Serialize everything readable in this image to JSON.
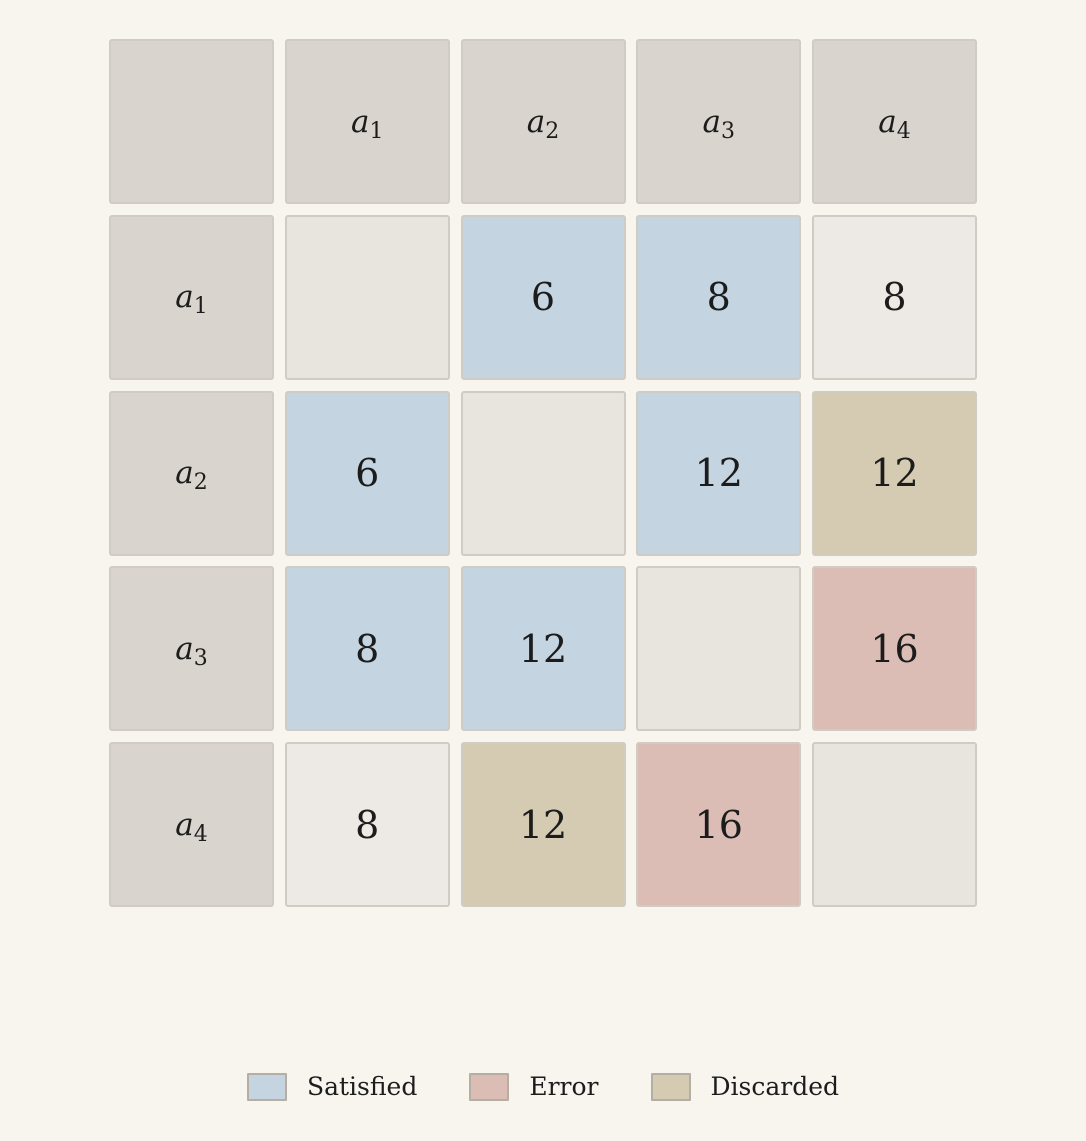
{
  "matrix": {
    "column_headers": [
      {
        "base": "a",
        "sub": "1"
      },
      {
        "base": "a",
        "sub": "2"
      },
      {
        "base": "a",
        "sub": "3"
      },
      {
        "base": "a",
        "sub": "4"
      }
    ],
    "rows": [
      {
        "header": {
          "base": "a",
          "sub": "1"
        },
        "cells": [
          {
            "value": "",
            "status": "diagonal"
          },
          {
            "value": "6",
            "status": "satisfied"
          },
          {
            "value": "8",
            "status": "satisfied"
          },
          {
            "value": "8",
            "status": "plain"
          }
        ]
      },
      {
        "header": {
          "base": "a",
          "sub": "2"
        },
        "cells": [
          {
            "value": "6",
            "status": "satisfied"
          },
          {
            "value": "",
            "status": "diagonal"
          },
          {
            "value": "12",
            "status": "satisfied"
          },
          {
            "value": "12",
            "status": "discarded"
          }
        ]
      },
      {
        "header": {
          "base": "a",
          "sub": "3"
        },
        "cells": [
          {
            "value": "8",
            "status": "satisfied"
          },
          {
            "value": "12",
            "status": "satisfied"
          },
          {
            "value": "",
            "status": "diagonal"
          },
          {
            "value": "16",
            "status": "error"
          }
        ]
      },
      {
        "header": {
          "base": "a",
          "sub": "4"
        },
        "cells": [
          {
            "value": "8",
            "status": "plain"
          },
          {
            "value": "12",
            "status": "discarded"
          },
          {
            "value": "16",
            "status": "error"
          },
          {
            "value": "",
            "status": "diagonal"
          }
        ]
      }
    ]
  },
  "legend": [
    {
      "label": "Satisfied",
      "status": "satisfied",
      "color": "#c4d4e0"
    },
    {
      "label": "Error",
      "status": "error",
      "color": "#dbbdb6"
    },
    {
      "label": "Discarded",
      "status": "discarded",
      "color": "#d4cbb2"
    }
  ],
  "colors": {
    "background": "#f8f5ef",
    "header": "#d9d4ce",
    "diagonal": "#e8e5df",
    "plain": "#edeae5",
    "satisfied": "#c4d4e0",
    "error": "#dbbdb6",
    "discarded": "#d4cbb2"
  }
}
